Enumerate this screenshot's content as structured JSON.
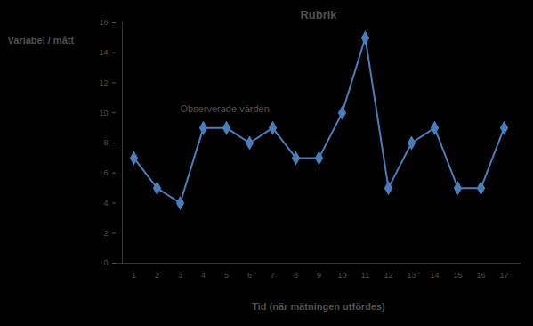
{
  "chart_data": {
    "type": "line",
    "title": "Rubrik",
    "y_label": "Variabel / mått",
    "x_label": "Tid (när mätningen utfördes)",
    "annotation": "Observerade värden",
    "categories": [
      "1",
      "2",
      "3",
      "4",
      "5",
      "6",
      "7",
      "8",
      "9",
      "10",
      "11",
      "12",
      "13",
      "14",
      "15",
      "16",
      "17"
    ],
    "values": [
      7,
      5,
      4,
      9,
      9,
      8,
      9,
      7,
      7,
      10,
      15,
      5,
      8,
      9,
      5,
      5,
      9
    ],
    "color": "#4a7ebb",
    "marker": "diamond",
    "line_style": "solid",
    "ylim": [
      0,
      16
    ],
    "yticks": [
      0,
      2,
      4,
      6,
      8,
      10,
      12,
      14,
      16
    ],
    "grid": false
  }
}
